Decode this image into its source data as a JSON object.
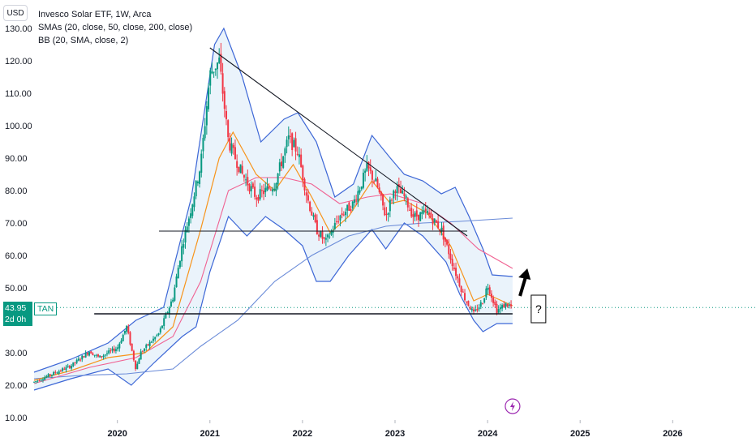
{
  "header": {
    "currency": "USD",
    "title": "Invesco Solar ETF, 1W, Arca",
    "indicator_sma": "SMAs (20, close, 50, close, 200, close)",
    "indicator_bb": "BB (20, SMA, close, 2)"
  },
  "price_badge": {
    "last_price": "43.95",
    "countdown": "2d 0h",
    "symbol": "TAN"
  },
  "annotation_text": "?",
  "colors": {
    "up": "#089981",
    "down": "#f23645",
    "sma20": "#f7931a",
    "sma50": "#f06292",
    "sma200": "#6a8bd8",
    "bb_band": "#3d67d6",
    "bb_fill": "#e3effa",
    "trendline": "#131722",
    "last_price_line": "#089981",
    "flash_icon": "#9c27b0"
  },
  "chart_data": {
    "type": "candlestick",
    "y_ticks": [
      "10.00",
      "20.00",
      "30.00",
      "40.00",
      "50.00",
      "60.00",
      "70.00",
      "80.00",
      "90.00",
      "100.00",
      "110.00",
      "120.00",
      "130.00"
    ],
    "ylim": [
      10,
      130
    ],
    "x_ticks": [
      "2020",
      "2021",
      "2022",
      "2023",
      "2024",
      "2025",
      "2026"
    ],
    "xlim": [
      2019.1,
      2026.9
    ],
    "last_price": 43.95,
    "price_path": [
      [
        2019.1,
        21.0
      ],
      [
        2019.3,
        23.5
      ],
      [
        2019.5,
        26.0
      ],
      [
        2019.7,
        30.5
      ],
      [
        2019.8,
        28.5
      ],
      [
        2020.0,
        31.5
      ],
      [
        2020.1,
        38.0
      ],
      [
        2020.2,
        25.0
      ],
      [
        2020.25,
        30.0
      ],
      [
        2020.45,
        36.0
      ],
      [
        2020.6,
        47.0
      ],
      [
        2020.7,
        63.0
      ],
      [
        2020.8,
        75.0
      ],
      [
        2020.9,
        88.0
      ],
      [
        2021.0,
        116.0
      ],
      [
        2021.1,
        120.0
      ],
      [
        2021.2,
        95.0
      ],
      [
        2021.35,
        85.0
      ],
      [
        2021.5,
        78.0
      ],
      [
        2021.7,
        82.0
      ],
      [
        2021.85,
        96.0
      ],
      [
        2021.95,
        92.0
      ],
      [
        2022.05,
        78.0
      ],
      [
        2022.15,
        68.0
      ],
      [
        2022.25,
        64.0
      ],
      [
        2022.4,
        72.0
      ],
      [
        2022.55,
        76.0
      ],
      [
        2022.7,
        87.0
      ],
      [
        2022.8,
        82.0
      ],
      [
        2022.9,
        72.0
      ],
      [
        2023.0,
        81.0
      ],
      [
        2023.1,
        78.0
      ],
      [
        2023.2,
        72.0
      ],
      [
        2023.35,
        73.0
      ],
      [
        2023.5,
        68.0
      ],
      [
        2023.65,
        55.0
      ],
      [
        2023.75,
        47.0
      ],
      [
        2023.85,
        42.0
      ],
      [
        2023.95,
        46.0
      ],
      [
        2024.0,
        51.0
      ],
      [
        2024.1,
        43.0
      ],
      [
        2024.2,
        45.0
      ],
      [
        2024.27,
        43.95
      ]
    ],
    "sma20": [
      [
        2019.1,
        21.5
      ],
      [
        2019.5,
        24.5
      ],
      [
        2019.9,
        28.5
      ],
      [
        2020.3,
        30.0
      ],
      [
        2020.6,
        38.0
      ],
      [
        2020.9,
        68.0
      ],
      [
        2021.1,
        90.0
      ],
      [
        2021.25,
        98.0
      ],
      [
        2021.5,
        85.0
      ],
      [
        2021.7,
        80.0
      ],
      [
        2021.9,
        88.0
      ],
      [
        2022.1,
        78.0
      ],
      [
        2022.3,
        67.0
      ],
      [
        2022.5,
        72.0
      ],
      [
        2022.75,
        83.0
      ],
      [
        2022.95,
        76.0
      ],
      [
        2023.1,
        77.0
      ],
      [
        2023.35,
        73.0
      ],
      [
        2023.6,
        63.0
      ],
      [
        2023.85,
        46.0
      ],
      [
        2024.0,
        48.0
      ],
      [
        2024.27,
        44.5
      ]
    ],
    "sma50": [
      [
        2019.1,
        20.5
      ],
      [
        2019.7,
        25.5
      ],
      [
        2020.2,
        28.5
      ],
      [
        2020.6,
        35.0
      ],
      [
        2020.9,
        52.0
      ],
      [
        2021.2,
        80.0
      ],
      [
        2021.5,
        84.0
      ],
      [
        2021.8,
        84.0
      ],
      [
        2022.1,
        82.0
      ],
      [
        2022.4,
        76.0
      ],
      [
        2022.7,
        78.0
      ],
      [
        2022.95,
        79.0
      ],
      [
        2023.3,
        76.0
      ],
      [
        2023.6,
        70.0
      ],
      [
        2023.9,
        62.0
      ],
      [
        2024.27,
        56.0
      ]
    ],
    "sma200": [
      [
        2019.1,
        22.0
      ],
      [
        2019.6,
        23.0
      ],
      [
        2020.1,
        23.5
      ],
      [
        2020.6,
        25.0
      ],
      [
        2020.9,
        32.0
      ],
      [
        2021.3,
        40.0
      ],
      [
        2021.7,
        52.0
      ],
      [
        2022.1,
        60.0
      ],
      [
        2022.5,
        66.0
      ],
      [
        2022.9,
        69.0
      ],
      [
        2023.3,
        70.0
      ],
      [
        2023.7,
        70.5
      ],
      [
        2024.27,
        71.5
      ]
    ],
    "bb_upper": [
      [
        2019.1,
        24.0
      ],
      [
        2019.5,
        28.0
      ],
      [
        2019.9,
        33.0
      ],
      [
        2020.2,
        40.0
      ],
      [
        2020.5,
        44.0
      ],
      [
        2020.8,
        78.0
      ],
      [
        2021.05,
        125.0
      ],
      [
        2021.15,
        130.0
      ],
      [
        2021.35,
        115.0
      ],
      [
        2021.55,
        95.0
      ],
      [
        2021.8,
        102.0
      ],
      [
        2021.95,
        104.0
      ],
      [
        2022.15,
        95.0
      ],
      [
        2022.35,
        78.0
      ],
      [
        2022.55,
        82.0
      ],
      [
        2022.75,
        97.0
      ],
      [
        2022.95,
        90.0
      ],
      [
        2023.1,
        85.0
      ],
      [
        2023.3,
        83.0
      ],
      [
        2023.5,
        79.0
      ],
      [
        2023.65,
        81.0
      ],
      [
        2023.8,
        72.0
      ],
      [
        2023.95,
        62.0
      ],
      [
        2024.05,
        54.0
      ],
      [
        2024.27,
        53.5
      ]
    ],
    "bb_lower": [
      [
        2019.1,
        18.5
      ],
      [
        2019.5,
        22.0
      ],
      [
        2019.9,
        25.0
      ],
      [
        2020.15,
        20.0
      ],
      [
        2020.4,
        27.0
      ],
      [
        2020.7,
        35.0
      ],
      [
        2020.85,
        38.0
      ],
      [
        2021.0,
        55.0
      ],
      [
        2021.2,
        72.0
      ],
      [
        2021.4,
        66.0
      ],
      [
        2021.6,
        72.0
      ],
      [
        2021.8,
        68.0
      ],
      [
        2022.0,
        63.0
      ],
      [
        2022.15,
        52.0
      ],
      [
        2022.3,
        52.0
      ],
      [
        2022.5,
        60.0
      ],
      [
        2022.75,
        68.0
      ],
      [
        2022.9,
        62.0
      ],
      [
        2023.1,
        70.0
      ],
      [
        2023.3,
        66.0
      ],
      [
        2023.55,
        58.0
      ],
      [
        2023.7,
        48.0
      ],
      [
        2023.85,
        40.0
      ],
      [
        2023.95,
        36.5
      ],
      [
        2024.1,
        39.0
      ],
      [
        2024.27,
        39.0
      ]
    ],
    "trendlines": [
      {
        "from": [
          2021.0,
          124.0
        ],
        "to": [
          2023.78,
          66.0
        ]
      },
      {
        "from": [
          2020.45,
          67.5
        ],
        "to": [
          2023.78,
          67.5
        ]
      },
      {
        "from": [
          2019.75,
          42.0
        ],
        "to": [
          2024.27,
          42.0
        ]
      }
    ],
    "annotations": [
      {
        "kind": "arrow-up",
        "from": [
          2024.35,
          47.5
        ],
        "to": [
          2024.43,
          56.0
        ]
      },
      {
        "kind": "text-box",
        "at": [
          2024.55,
          43.5
        ],
        "text": "?"
      },
      {
        "kind": "flash-icon",
        "at": [
          2024.27,
          13.5
        ]
      }
    ]
  }
}
